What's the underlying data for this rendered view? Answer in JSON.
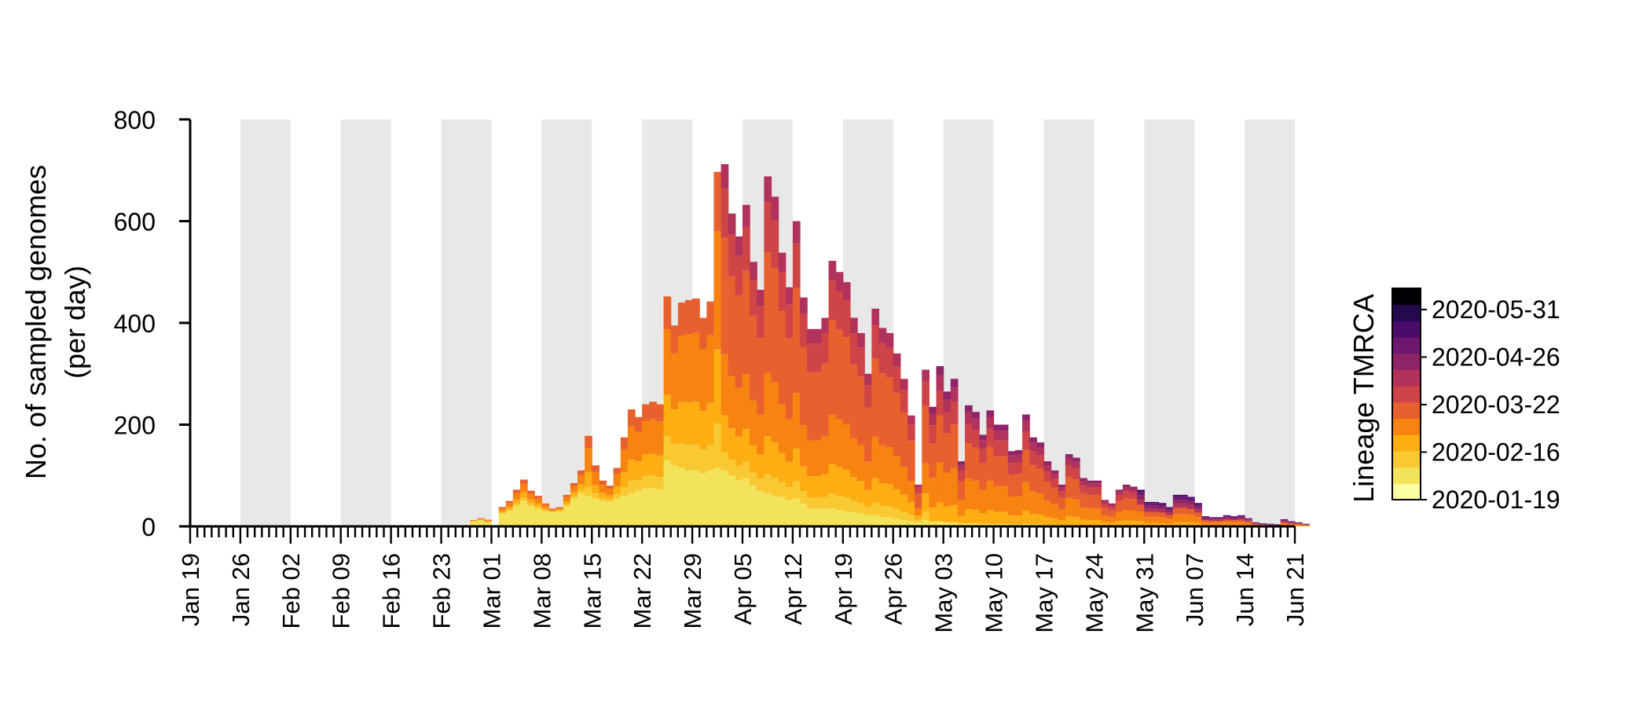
{
  "chart_data": {
    "type": "bar",
    "stacked": true,
    "title": "",
    "ylabel_line1": "No. of sampled genomes",
    "ylabel_line2": "(per day)",
    "xlabel": "",
    "x_start_date": "2020-01-19",
    "x_end_date": "2020-06-21",
    "ylim": [
      0,
      800
    ],
    "y_ticks": [
      0,
      200,
      400,
      600,
      800
    ],
    "x_tick_labels": [
      "Jan 19",
      "Jan 26",
      "Feb 02",
      "Feb 09",
      "Feb 16",
      "Feb 23",
      "Mar 01",
      "Mar 08",
      "Mar 15",
      "Mar 22",
      "Mar 29",
      "Apr 05",
      "Apr 12",
      "Apr 19",
      "Apr 26",
      "May 03",
      "May 10",
      "May 17",
      "May 24",
      "May 31",
      "Jun 07",
      "Jun 14",
      "Jun 21"
    ],
    "weekly_shading": true,
    "first_sampled_date": "2020-02-27",
    "daily_totals": [
      12,
      16,
      13,
      0,
      38,
      50,
      72,
      92,
      70,
      60,
      45,
      35,
      38,
      62,
      85,
      110,
      178,
      120,
      90,
      80,
      115,
      175,
      230,
      215,
      240,
      245,
      240,
      452,
      395,
      440,
      445,
      448,
      410,
      442,
      697,
      712,
      615,
      570,
      632,
      520,
      465,
      688,
      648,
      538,
      470,
      600,
      450,
      388,
      388,
      410,
      522,
      500,
      480,
      410,
      380,
      300,
      428,
      390,
      380,
      340,
      290,
      218,
      82,
      308,
      235,
      315,
      265,
      290,
      128,
      238,
      225,
      180,
      228,
      200,
      200,
      148,
      150,
      220,
      175,
      165,
      128,
      110,
      82,
      142,
      135,
      95,
      90,
      90,
      52,
      45,
      72,
      82,
      78,
      72,
      48,
      48,
      46,
      38,
      62,
      62,
      58,
      46,
      20,
      18,
      18,
      22,
      20,
      22,
      16,
      8,
      6,
      5,
      4,
      14,
      10,
      8,
      5
    ],
    "yellow_base": [
      10,
      12,
      8,
      0,
      25,
      30,
      40,
      50,
      40,
      35,
      30,
      28,
      30,
      40,
      55,
      65,
      60,
      55,
      50,
      48,
      55,
      60,
      65,
      70,
      75,
      75,
      72,
      130,
      120,
      115,
      110,
      110,
      105,
      110,
      115,
      110,
      100,
      90,
      95,
      80,
      70,
      65,
      60,
      58,
      52,
      55,
      45,
      35,
      35,
      35,
      35,
      32,
      30,
      28,
      25,
      22,
      22,
      18,
      18,
      15,
      12,
      10,
      8,
      12,
      10,
      10,
      8,
      8,
      6,
      6,
      6,
      5,
      5,
      5,
      5,
      4,
      4,
      5,
      4,
      4,
      3,
      3,
      3,
      3,
      3,
      2,
      2,
      2,
      2,
      2,
      2,
      2,
      2,
      2,
      1,
      1,
      1,
      1,
      1,
      1,
      1,
      1,
      1,
      1,
      1,
      1,
      1,
      1,
      1,
      0,
      0,
      0,
      0,
      0,
      0,
      0,
      0
    ],
    "colorbar": {
      "title": "Lineage TMRCA",
      "tick_labels": [
        "2020-01-19",
        "2020-02-16",
        "2020-03-22",
        "2020-04-26",
        "2020-05-31"
      ],
      "colors": [
        "#fcffa4",
        "#f3e35a",
        "#f8c932",
        "#fcae12",
        "#f78311",
        "#e8602d",
        "#cf4446",
        "#b1325a",
        "#8f2469",
        "#6d186e",
        "#4a0c6b",
        "#24094f",
        "#000004"
      ]
    }
  }
}
